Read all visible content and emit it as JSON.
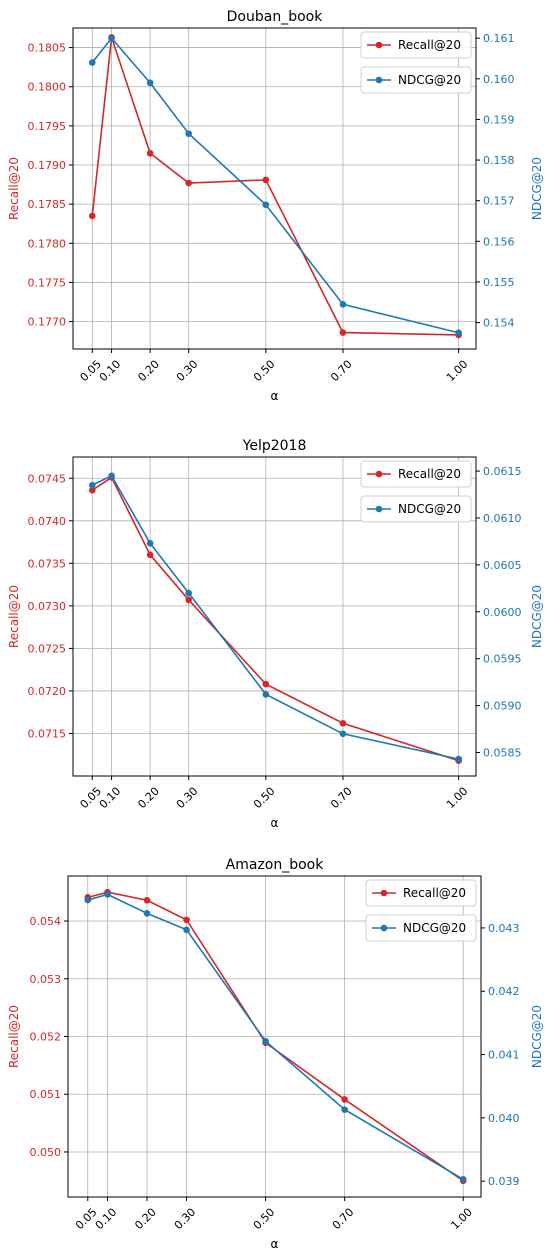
{
  "colors": {
    "recall": "#d62728",
    "ndcg": "#1f77b4",
    "grid": "#b0b0b0",
    "axis": "#000000"
  },
  "chart_data": [
    {
      "type": "line",
      "title": "Douban_book",
      "xlabel": "α",
      "ylabel_left": "Recall@20",
      "ylabel_right": "NDCG@20",
      "x": [
        0.05,
        0.1,
        0.2,
        0.3,
        0.5,
        0.7,
        1.0
      ],
      "x_tick_labels": [
        "0.05",
        "0.10",
        "0.20",
        "0.30",
        "0.50",
        "0.70",
        "1.00"
      ],
      "series": [
        {
          "name": "Recall@20",
          "axis": "left",
          "values": [
            0.17835,
            0.18063,
            0.17915,
            0.17877,
            0.17881,
            0.17686,
            0.17683
          ]
        },
        {
          "name": "NDCG@20",
          "axis": "right",
          "values": [
            0.1604,
            0.161,
            0.1599,
            0.15865,
            0.1569,
            0.15445,
            0.15375
          ]
        }
      ],
      "y_left_range": [
        0.17665,
        0.18075
      ],
      "y_left_ticks": [
        0.177,
        0.1775,
        0.178,
        0.1785,
        0.179,
        0.1795,
        0.18,
        0.1805
      ],
      "y_left_tick_labels": [
        "0.1770",
        "0.1775",
        "0.1780",
        "0.1785",
        "0.1790",
        "0.1795",
        "0.1800",
        "0.1805"
      ],
      "y_right_range": [
        0.15335,
        0.16125
      ],
      "y_right_ticks": [
        0.154,
        0.155,
        0.156,
        0.157,
        0.158,
        0.159,
        0.16,
        0.161
      ],
      "y_right_tick_labels": [
        "0.154",
        "0.155",
        "0.156",
        "0.157",
        "0.158",
        "0.159",
        "0.160",
        "0.161"
      ],
      "grid": true,
      "legend": "top-right"
    },
    {
      "type": "line",
      "title": "Yelp2018",
      "xlabel": "α",
      "ylabel_left": "Recall@20",
      "ylabel_right": "NDCG@20",
      "x": [
        0.05,
        0.1,
        0.2,
        0.3,
        0.5,
        0.7,
        1.0
      ],
      "x_tick_labels": [
        "0.05",
        "0.10",
        "0.20",
        "0.30",
        "0.50",
        "0.70",
        "1.00"
      ],
      "series": [
        {
          "name": "Recall@20",
          "axis": "left",
          "values": [
            0.07436,
            0.07451,
            0.0736,
            0.07307,
            0.07208,
            0.07162,
            0.07118
          ]
        },
        {
          "name": "NDCG@20",
          "axis": "right",
          "values": [
            0.06135,
            0.06145,
            0.06073,
            0.0602,
            0.05912,
            0.0587,
            0.05843
          ]
        }
      ],
      "y_left_range": [
        0.071,
        0.07475
      ],
      "y_left_ticks": [
        0.0715,
        0.072,
        0.0725,
        0.073,
        0.0735,
        0.074,
        0.0745
      ],
      "y_left_tick_labels": [
        "0.0715",
        "0.0720",
        "0.0725",
        "0.0730",
        "0.0735",
        "0.0740",
        "0.0745"
      ],
      "y_right_range": [
        0.05825,
        0.06165
      ],
      "y_right_ticks": [
        0.0585,
        0.059,
        0.0595,
        0.06,
        0.0605,
        0.061,
        0.0615
      ],
      "y_right_tick_labels": [
        "0.0585",
        "0.0590",
        "0.0595",
        "0.0600",
        "0.0605",
        "0.0610",
        "0.0615"
      ],
      "grid": true,
      "legend": "top-right"
    },
    {
      "type": "line",
      "title": "Amazon_book",
      "xlabel": "α",
      "ylabel_left": "Recall@20",
      "ylabel_right": "NDCG@20",
      "x": [
        0.05,
        0.1,
        0.2,
        0.3,
        0.5,
        0.7,
        1.0
      ],
      "x_tick_labels": [
        "0.05",
        "0.10",
        "0.20",
        "0.30",
        "0.50",
        "0.70",
        "1.00"
      ],
      "series": [
        {
          "name": "Recall@20",
          "axis": "left",
          "values": [
            0.05441,
            0.0545,
            0.05436,
            0.05402,
            0.05189,
            0.05091,
            0.0495
          ]
        },
        {
          "name": "NDCG@20",
          "axis": "right",
          "values": [
            0.04344,
            0.04353,
            0.04323,
            0.04297,
            0.04121,
            0.04013,
            0.03903
          ]
        }
      ],
      "y_left_range": [
        0.04922,
        0.05478
      ],
      "y_left_ticks": [
        0.05,
        0.051,
        0.052,
        0.053,
        0.054
      ],
      "y_left_tick_labels": [
        "0.050",
        "0.051",
        "0.052",
        "0.053",
        "0.054"
      ],
      "y_right_range": [
        0.03875,
        0.04382
      ],
      "y_right_ticks": [
        0.039,
        0.04,
        0.041,
        0.042,
        0.043
      ],
      "y_right_tick_labels": [
        "0.039",
        "0.040",
        "0.041",
        "0.042",
        "0.043"
      ],
      "grid": true,
      "legend": "top-right"
    }
  ]
}
